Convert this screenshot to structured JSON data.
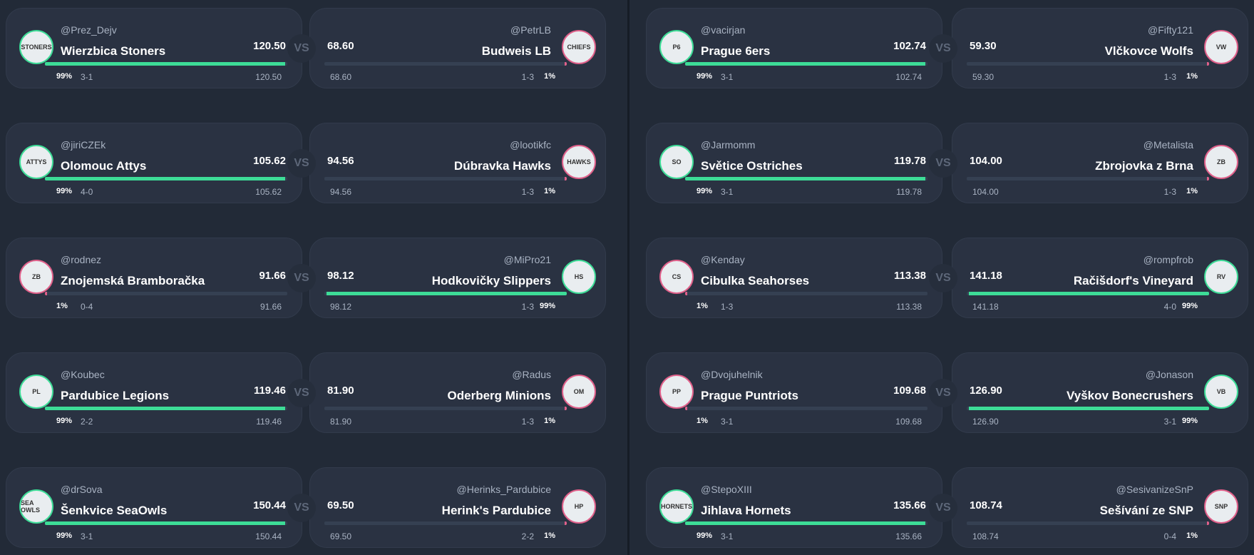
{
  "colors": {
    "win": "#3ddc97",
    "lose": "#e0608a",
    "bg": "#222a37",
    "card": "#2a3242"
  },
  "vs_label": "VS",
  "matchups": [
    {
      "home": {
        "handle": "@Prez_Dejv",
        "team": "Wierzbica Stoners",
        "score": "120.50",
        "pct": "99%",
        "record": "3-1",
        "win": true,
        "prob": 99,
        "logo": "STONERS"
      },
      "away": {
        "handle": "@PetrLB",
        "team": "Budweis LB",
        "score": "68.60",
        "pct": "1%",
        "record": "1-3",
        "win": false,
        "prob": 1,
        "logo": "CHIEFS"
      }
    },
    {
      "home": {
        "handle": "@Fifty121",
        "team": "",
        "score": "",
        "pct": "",
        "record": "",
        "win": false,
        "prob": 0,
        "logo": ""
      },
      "away": null
    },
    {
      "home": {
        "handle": "@jiriCZEk",
        "team": "Olomouc Attys",
        "score": "105.62",
        "pct": "99%",
        "record": "4-0",
        "win": true,
        "prob": 99,
        "logo": "ATTYS"
      },
      "away": {
        "handle": "@lootikfc",
        "team": "Dúbravka Hawks",
        "score": "94.56",
        "pct": "1%",
        "record": "1-3",
        "win": false,
        "prob": 1,
        "logo": "HAWKS"
      }
    },
    {
      "home": {
        "handle": "@rodnez",
        "team": "Znojemská Bramboračka",
        "score": "91.66",
        "pct": "1%",
        "record": "0-4",
        "win": false,
        "prob": 1,
        "logo": "ZB"
      },
      "away": {
        "handle": "@MiPro21",
        "team": "Hodkovičky Slippers",
        "score": "98.12",
        "pct": "99%",
        "record": "1-3",
        "win": true,
        "prob": 99,
        "logo": "HS"
      }
    },
    {
      "home": {
        "handle": "@Koubec",
        "team": "Pardubice Legions",
        "score": "119.46",
        "pct": "99%",
        "record": "2-2",
        "win": true,
        "prob": 99,
        "logo": "PL"
      },
      "away": {
        "handle": "@Radus",
        "team": "Oderberg Minions",
        "score": "81.90",
        "pct": "1%",
        "record": "1-3",
        "win": false,
        "prob": 1,
        "logo": "OM"
      }
    },
    {
      "home": {
        "handle": "@drSova",
        "team": "Šenkvice SeaOwls",
        "score": "150.44",
        "pct": "99%",
        "record": "3-1",
        "win": true,
        "prob": 99,
        "logo": "SEA OWLS"
      },
      "away": {
        "handle": "@Herinks_Pardubice",
        "team": "Herink's Pardubice",
        "score": "69.50",
        "pct": "1%",
        "record": "2-2",
        "win": false,
        "prob": 1,
        "logo": "HP"
      }
    },
    {
      "home": {
        "handle": "@vacirjan",
        "team": "Prague 6ers",
        "score": "102.74",
        "pct": "99%",
        "record": "3-1",
        "win": true,
        "prob": 99,
        "logo": "P6"
      },
      "away": {
        "handle": "@Fifty121",
        "team": "Vlčkovce Wolfs",
        "score": "59.30",
        "pct": "1%",
        "record": "1-3",
        "win": false,
        "prob": 1,
        "logo": "VW"
      }
    },
    {
      "home": {
        "handle": "@Jarmomm",
        "team": "Světice Ostriches",
        "score": "119.78",
        "pct": "99%",
        "record": "3-1",
        "win": true,
        "prob": 99,
        "logo": "SO"
      },
      "away": {
        "handle": "@Metalista",
        "team": "Zbrojovka z Brna",
        "score": "104.00",
        "pct": "1%",
        "record": "1-3",
        "win": false,
        "prob": 1,
        "logo": "ZB"
      }
    },
    {
      "home": {
        "handle": "@Kenday",
        "team": "Cibulka Seahorses",
        "score": "113.38",
        "pct": "1%",
        "record": "1-3",
        "win": false,
        "prob": 1,
        "logo": "CS"
      },
      "away": {
        "handle": "@rompfrob",
        "team": "Račišdorf's Vineyard",
        "score": "141.18",
        "pct": "99%",
        "record": "4-0",
        "win": true,
        "prob": 99,
        "logo": "RV"
      }
    },
    {
      "home": {
        "handle": "@Dvojuhelnik",
        "team": "Prague Puntriots",
        "score": "109.68",
        "pct": "1%",
        "record": "3-1",
        "win": false,
        "prob": 1,
        "logo": "PP"
      },
      "away": {
        "handle": "@Jonason",
        "team": "Vyškov Bonecrushers",
        "score": "126.90",
        "pct": "99%",
        "record": "3-1",
        "win": true,
        "prob": 99,
        "logo": "VB"
      }
    },
    {
      "home": {
        "handle": "@StepoXIII",
        "team": "Jihlava Hornets",
        "score": "135.66",
        "pct": "99%",
        "record": "3-1",
        "win": true,
        "prob": 99,
        "logo": "HORNETS"
      },
      "away": {
        "handle": "@SesivanizeSnP",
        "team": "Sešívání ze SNP",
        "score": "108.74",
        "pct": "1%",
        "record": "0-4",
        "win": false,
        "prob": 1,
        "logo": "SNP"
      }
    }
  ]
}
